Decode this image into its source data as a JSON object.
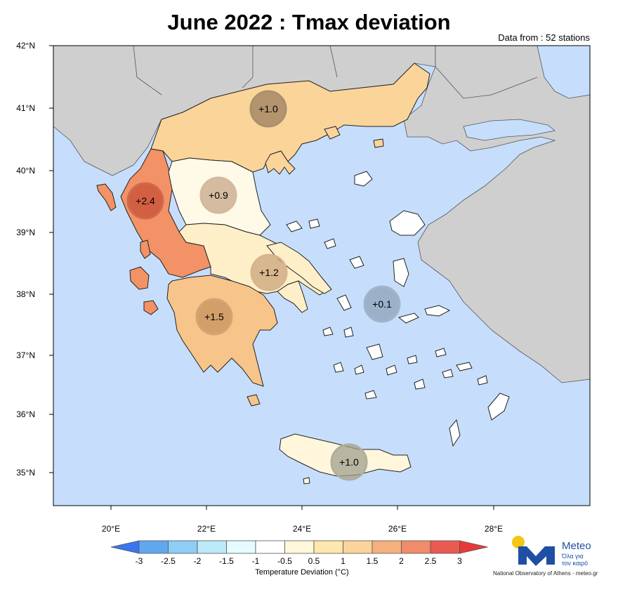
{
  "title": "June 2022 : Tmax deviation",
  "subtitle": "Data from : 52 stations",
  "axes": {
    "lat_labels": [
      "42°N",
      "41°N",
      "40°N",
      "39°N",
      "38°N",
      "37°N",
      "36°N",
      "35°N"
    ],
    "lon_labels": [
      "20°E",
      "22°E",
      "24°E",
      "26°E",
      "28°E"
    ],
    "lat_range": [
      34.4,
      42.0
    ],
    "lon_range": [
      18.9,
      30.0
    ]
  },
  "colors": {
    "sea": "#c6defc",
    "foreign_land": "#cfcfcf",
    "borders": "#222222"
  },
  "regions": [
    {
      "name": "Macedonia-Thrace",
      "value": "+1.0",
      "color": "#fbd49a",
      "badge_color": "#9c7f5f"
    },
    {
      "name": "Epirus-Ionian",
      "value": "+2.4",
      "color": "#f29266",
      "badge_color": "#c9523a"
    },
    {
      "name": "Thessaly",
      "value": "+0.9",
      "color": "#fff9e8",
      "badge_color": "#c7a78a"
    },
    {
      "name": "Central Greece",
      "value": "+1.2",
      "color": "#ffefc8",
      "badge_color": "#c9a47b"
    },
    {
      "name": "Peloponnese",
      "value": "+1.5",
      "color": "#f7c489",
      "badge_color": "#c7935f"
    },
    {
      "name": "Aegean Islands",
      "value": "+0.1",
      "color": "#ffffff",
      "badge_color": "#93a9c0"
    },
    {
      "name": "Crete",
      "value": "+1.0",
      "color": "#fff6dc",
      "badge_color": "#a09f8e"
    }
  ],
  "colorbar": {
    "title": "Temperature Deviation (°C)",
    "labels": [
      "-3",
      "-2.5",
      "-2",
      "-1.5",
      "-1",
      "-0.5",
      "0.5",
      "1",
      "1.5",
      "2",
      "2.5",
      "3"
    ],
    "colors": [
      "#3a75ee",
      "#61a7f0",
      "#8ecdf5",
      "#bdeaf9",
      "#e6fbfd",
      "#ffffff",
      "#fff7dc",
      "#ffe7ad",
      "#fbd49a",
      "#f6b07e",
      "#f08c6a",
      "#e95a50",
      "#e83a3a"
    ]
  },
  "logo": {
    "name": "Meteo",
    "tagline_1": "Όλα για",
    "tagline_2": "τον καιρό",
    "credit": "National Observatory of Athens - meteo.gr",
    "accent": "#1f4fa3",
    "sun": "#f5c518"
  }
}
